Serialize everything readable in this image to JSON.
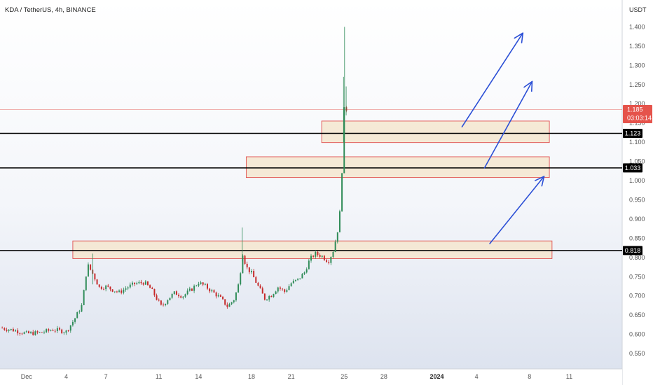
{
  "header": {
    "title": "KDA / TetherUS, 4h, BINANCE",
    "unit": "USDT"
  },
  "colors": {
    "up": "#2e8b57",
    "down": "#c62828",
    "zone_fill": "#f5e6cf",
    "zone_stroke": "#e05050",
    "arrow": "#2b4fd6",
    "level": "#000000",
    "last_price": "#e5534b"
  },
  "chart_data": {
    "type": "candlestick",
    "y_range": [
      0.51,
      1.47
    ],
    "y_ticks": [
      "0.550",
      "0.600",
      "0.650",
      "0.700",
      "0.750",
      "0.800",
      "0.850",
      "0.900",
      "0.950",
      "1.000",
      "1.050",
      "1.100",
      "1.150",
      "1.200",
      "1.250",
      "1.300",
      "1.350",
      "1.400"
    ],
    "x_ticks": [
      {
        "label": "Dec",
        "t": 0
      },
      {
        "label": "4",
        "t": 3
      },
      {
        "label": "7",
        "t": 6
      },
      {
        "label": "11",
        "t": 10
      },
      {
        "label": "14",
        "t": 13
      },
      {
        "label": "18",
        "t": 17
      },
      {
        "label": "21",
        "t": 20
      },
      {
        "label": "25",
        "t": 24
      },
      {
        "label": "28",
        "t": 27
      },
      {
        "label": "2024",
        "t": 31,
        "bold": true
      },
      {
        "label": "4",
        "t": 34
      },
      {
        "label": "8",
        "t": 38
      },
      {
        "label": "11",
        "t": 41
      }
    ],
    "x_range": [
      -2.0,
      45.0
    ],
    "price_path": [
      [
        -2.0,
        0.617
      ],
      [
        -1.0,
        0.611
      ],
      [
        0.0,
        0.602
      ],
      [
        1.0,
        0.604
      ],
      [
        2.0,
        0.612
      ],
      [
        3.0,
        0.607
      ],
      [
        3.6,
        0.638
      ],
      [
        4.2,
        0.676
      ],
      [
        4.6,
        0.782
      ],
      [
        5.0,
        0.758
      ],
      [
        5.5,
        0.722
      ],
      [
        6.0,
        0.724
      ],
      [
        6.5,
        0.716
      ],
      [
        7.0,
        0.709
      ],
      [
        7.6,
        0.722
      ],
      [
        8.2,
        0.732
      ],
      [
        8.9,
        0.735
      ],
      [
        9.4,
        0.718
      ],
      [
        9.8,
        0.695
      ],
      [
        10.2,
        0.671
      ],
      [
        10.7,
        0.693
      ],
      [
        11.2,
        0.708
      ],
      [
        11.8,
        0.699
      ],
      [
        12.5,
        0.718
      ],
      [
        13.0,
        0.735
      ],
      [
        13.5,
        0.725
      ],
      [
        14.0,
        0.712
      ],
      [
        14.6,
        0.696
      ],
      [
        15.2,
        0.672
      ],
      [
        15.7,
        0.692
      ],
      [
        16.1,
        0.74
      ],
      [
        16.3,
        0.815
      ],
      [
        16.6,
        0.775
      ],
      [
        17.0,
        0.759
      ],
      [
        17.5,
        0.725
      ],
      [
        18.0,
        0.693
      ],
      [
        18.5,
        0.702
      ],
      [
        19.0,
        0.723
      ],
      [
        19.5,
        0.711
      ],
      [
        20.0,
        0.733
      ],
      [
        20.5,
        0.742
      ],
      [
        21.0,
        0.761
      ],
      [
        21.4,
        0.795
      ],
      [
        21.8,
        0.81
      ],
      [
        22.3,
        0.804
      ],
      [
        22.8,
        0.789
      ],
      [
        23.2,
        0.82
      ],
      [
        23.5,
        0.87
      ],
      [
        23.7,
        0.925
      ],
      [
        23.8,
        0.99
      ],
      [
        23.9,
        1.095
      ],
      [
        24.0,
        1.185
      ],
      [
        24.2,
        1.185
      ]
    ],
    "spikes": [
      {
        "t": 24.03,
        "high": 1.4,
        "low": 1.12
      },
      {
        "t": 23.95,
        "high": 1.27,
        "low": 1.1
      },
      {
        "t": 24.15,
        "high": 1.245,
        "low": 1.17
      },
      {
        "t": 16.3,
        "high": 0.878,
        "low": 0.79
      },
      {
        "t": 5.0,
        "high": 0.81,
        "low": 0.73
      }
    ],
    "levels": [
      {
        "value": 1.123,
        "label": "1.123"
      },
      {
        "value": 1.033,
        "label": "1.033"
      },
      {
        "value": 0.818,
        "label": "0.818"
      }
    ],
    "zones": [
      {
        "t1": 22.3,
        "t2": 39.5,
        "y1": 1.099,
        "y2": 1.155
      },
      {
        "t1": 16.6,
        "t2": 39.5,
        "y1": 1.008,
        "y2": 1.062
      },
      {
        "t1": 3.5,
        "t2": 39.7,
        "y1": 0.797,
        "y2": 0.843
      }
    ],
    "arrows": [
      {
        "from": [
          32.9,
          1.14
        ],
        "to": [
          37.5,
          1.384
        ]
      },
      {
        "from": [
          34.6,
          1.033
        ],
        "to": [
          38.2,
          1.258
        ]
      },
      {
        "from": [
          35.0,
          0.836
        ],
        "to": [
          39.1,
          1.011
        ]
      }
    ],
    "last_price": {
      "value": 1.185,
      "label": "1.185",
      "countdown": "03:03:14"
    },
    "seed": 7
  }
}
